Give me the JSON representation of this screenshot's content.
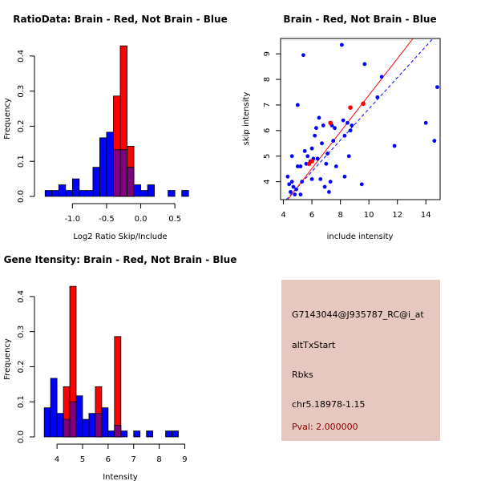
{
  "colors": {
    "red": "#ff0000",
    "blue": "#0000ff",
    "overlap": "#7f007f",
    "panel_bg": "#e6c8c0",
    "pval": "#8b0000"
  },
  "chart_data": [
    {
      "type": "bar",
      "subtype": "histogram",
      "title": "RatioData: Brain - Red, Not Brain - Blue",
      "xlabel": "Log2 Ratio Skip/Include",
      "ylabel": "Frequency",
      "xlim": [
        -1.45,
        0.85
      ],
      "ylim": [
        0,
        0.45
      ],
      "xticks": [
        -1.0,
        -0.5,
        0.0,
        0.5
      ],
      "xtick_labels": [
        "-1.0",
        "-0.5",
        "0.0",
        "0.5"
      ],
      "yticks": [
        0.0,
        0.1,
        0.2,
        0.3,
        0.4
      ],
      "ytick_labels": [
        "0.0",
        "0.1",
        "0.2",
        "0.3",
        "0.4"
      ],
      "series": [
        {
          "name": "Not Brain",
          "color": "blue",
          "bins": [
            [
              -1.4,
              -1.3,
              0.017
            ],
            [
              -1.3,
              -1.2,
              0.017
            ],
            [
              -1.2,
              -1.1,
              0.033
            ],
            [
              -1.1,
              -1.0,
              0.017
            ],
            [
              -1.0,
              -0.9,
              0.05
            ],
            [
              -0.9,
              -0.8,
              0.017
            ],
            [
              -0.8,
              -0.7,
              0.017
            ],
            [
              -0.7,
              -0.6,
              0.083
            ],
            [
              -0.6,
              -0.5,
              0.167
            ],
            [
              -0.5,
              -0.4,
              0.183
            ],
            [
              -0.4,
              -0.3,
              0.133
            ],
            [
              -0.3,
              -0.2,
              0.133
            ],
            [
              -0.2,
              -0.1,
              0.083
            ],
            [
              -0.1,
              0.0,
              0.033
            ],
            [
              0.0,
              0.1,
              0.017
            ],
            [
              0.1,
              0.2,
              0.033
            ],
            [
              0.4,
              0.5,
              0.017
            ],
            [
              0.6,
              0.7,
              0.017
            ]
          ]
        },
        {
          "name": "Brain",
          "color": "red",
          "bins": [
            [
              -0.5,
              -0.4,
              0.0
            ],
            [
              -0.4,
              -0.3,
              0.286
            ],
            [
              -0.3,
              -0.2,
              0.429
            ],
            [
              -0.2,
              -0.1,
              0.143
            ],
            [
              -0.1,
              0.0,
              0.0
            ]
          ]
        }
      ]
    },
    {
      "type": "scatter",
      "title": "Brain - Red, Not Brain - Blue",
      "xlabel": "include intensity",
      "ylabel": "skip intensity",
      "xlim": [
        3.8,
        15.0
      ],
      "ylim": [
        3.3,
        9.6
      ],
      "xticks": [
        4,
        6,
        8,
        10,
        12,
        14
      ],
      "xtick_labels": [
        "4",
        "6",
        "8",
        "10",
        "12",
        "14"
      ],
      "yticks": [
        4,
        5,
        6,
        7,
        8,
        9
      ],
      "ytick_labels": [
        "4",
        "5",
        "6",
        "7",
        "8",
        "9"
      ],
      "series": [
        {
          "name": "Not Brain",
          "color": "blue",
          "points": [
            [
              4.3,
              4.2
            ],
            [
              4.4,
              3.9
            ],
            [
              4.5,
              3.6
            ],
            [
              4.6,
              4.0
            ],
            [
              4.7,
              3.8
            ],
            [
              4.8,
              3.5
            ],
            [
              4.9,
              3.7
            ],
            [
              4.6,
              5.0
            ],
            [
              5.0,
              4.6
            ],
            [
              5.0,
              7.0
            ],
            [
              5.2,
              4.6
            ],
            [
              5.2,
              3.5
            ],
            [
              5.3,
              4.0
            ],
            [
              5.4,
              8.95
            ],
            [
              5.5,
              5.2
            ],
            [
              5.6,
              4.7
            ],
            [
              5.7,
              5.0
            ],
            [
              5.9,
              4.8
            ],
            [
              6.0,
              5.3
            ],
            [
              6.0,
              4.1
            ],
            [
              6.1,
              4.9
            ],
            [
              6.2,
              5.8
            ],
            [
              6.3,
              6.1
            ],
            [
              6.4,
              4.9
            ],
            [
              6.5,
              6.5
            ],
            [
              6.6,
              4.1
            ],
            [
              6.7,
              5.5
            ],
            [
              6.8,
              6.2
            ],
            [
              6.9,
              3.8
            ],
            [
              7.0,
              4.7
            ],
            [
              7.1,
              5.1
            ],
            [
              7.2,
              3.6
            ],
            [
              7.3,
              4.0
            ],
            [
              7.4,
              6.2
            ],
            [
              7.5,
              5.6
            ],
            [
              7.6,
              6.1
            ],
            [
              7.7,
              4.6
            ],
            [
              8.1,
              9.35
            ],
            [
              8.2,
              6.4
            ],
            [
              8.3,
              5.8
            ],
            [
              8.3,
              4.2
            ],
            [
              8.5,
              6.3
            ],
            [
              8.6,
              5.0
            ],
            [
              8.7,
              6.0
            ],
            [
              8.8,
              6.2
            ],
            [
              9.5,
              3.9
            ],
            [
              9.7,
              8.6
            ],
            [
              10.6,
              7.3
            ],
            [
              10.9,
              8.1
            ],
            [
              11.8,
              5.4
            ],
            [
              14.0,
              6.3
            ],
            [
              14.6,
              5.6
            ],
            [
              14.8,
              7.7
            ]
          ]
        },
        {
          "name": "Brain",
          "color": "red",
          "points": [
            [
              5.8,
              4.7
            ],
            [
              6.0,
              4.8
            ],
            [
              7.3,
              6.3
            ],
            [
              8.7,
              6.9
            ],
            [
              9.6,
              7.05
            ]
          ]
        }
      ],
      "fit_lines": [
        {
          "color": "blue",
          "dashed": true,
          "from": [
            4.2,
            3.3
          ],
          "to": [
            14.5,
            9.6
          ]
        },
        {
          "color": "red",
          "dashed": false,
          "from": [
            4.3,
            3.3
          ],
          "to": [
            13.1,
            9.6
          ]
        }
      ]
    },
    {
      "type": "bar",
      "subtype": "histogram",
      "title": "Gene Itensity: Brain - Red, Not Brain - Blue",
      "xlabel": "Intensity",
      "ylabel": "Frequency",
      "xlim": [
        3.4,
        9.55
      ],
      "ylim": [
        0,
        0.45
      ],
      "xticks": [
        4,
        5,
        6,
        7,
        8,
        9
      ],
      "xtick_labels": [
        "4",
        "5",
        "6",
        "7",
        "8",
        "9"
      ],
      "yticks": [
        0.0,
        0.1,
        0.2,
        0.3,
        0.4
      ],
      "ytick_labels": [
        "0.0",
        "0.1",
        "0.2",
        "0.3",
        "0.4"
      ],
      "series": [
        {
          "name": "Not Brain",
          "color": "blue",
          "bins": [
            [
              3.5,
              3.75,
              0.083
            ],
            [
              3.75,
              4.0,
              0.167
            ],
            [
              4.0,
              4.25,
              0.067
            ],
            [
              4.25,
              4.5,
              0.05
            ],
            [
              4.5,
              4.75,
              0.1
            ],
            [
              4.75,
              5.0,
              0.117
            ],
            [
              5.0,
              5.25,
              0.05
            ],
            [
              5.25,
              5.5,
              0.067
            ],
            [
              5.5,
              5.75,
              0.067
            ],
            [
              5.75,
              6.0,
              0.083
            ],
            [
              6.0,
              6.25,
              0.017
            ],
            [
              6.25,
              6.5,
              0.033
            ],
            [
              6.5,
              6.75,
              0.017
            ],
            [
              7.0,
              7.25,
              0.017
            ],
            [
              7.5,
              7.75,
              0.017
            ],
            [
              8.25,
              8.5,
              0.017
            ],
            [
              8.5,
              8.75,
              0.017
            ]
          ]
        },
        {
          "name": "Brain",
          "color": "red",
          "bins": [
            [
              4.0,
              4.25,
              0.0
            ],
            [
              4.25,
              4.5,
              0.143
            ],
            [
              4.5,
              4.75,
              0.429
            ],
            [
              5.5,
              5.75,
              0.143
            ],
            [
              6.25,
              6.5,
              0.286
            ]
          ]
        }
      ]
    }
  ],
  "info_panel": {
    "probe_id": "G7143044@J935787_RC@i_at",
    "event_type": "altTxStart",
    "gene": "Rbks",
    "location": "chr5.18978-1.15",
    "pval": "Pval: 2.000000"
  }
}
